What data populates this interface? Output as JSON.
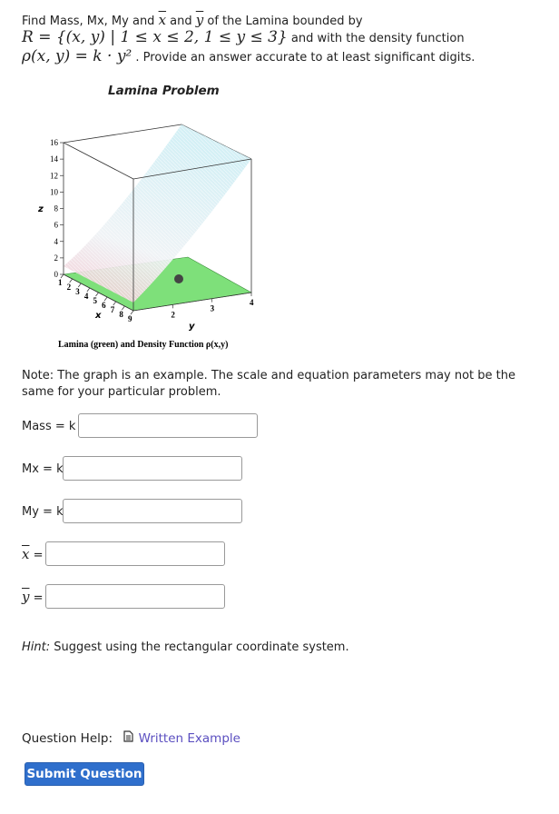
{
  "question": {
    "line1_prefix": "Find Mass, Mx, My and ",
    "xbar": "x",
    "and": " and ",
    "ybar": "y",
    "line1_suffix": " of the Lamina bounded by",
    "region_math": "R = {(x, y) | 1 ≤ x ≤ 2, 1 ≤ y ≤ 3}",
    "line2_suffix": " and with the density function",
    "density_math": "ρ(x, y) = k · y²",
    "line3_suffix": " . Provide an answer accurate to at least significant digits."
  },
  "figure": {
    "title": "Lamina Problem",
    "caption": "Lamina (green) and Density Function ρ(x,y)",
    "z_label": "z",
    "x_label": "x",
    "y_label": "y",
    "z_ticks": [
      "0",
      "2",
      "4",
      "6",
      "8",
      "10",
      "12",
      "14",
      "16"
    ],
    "x_ticks": [
      "1",
      "2",
      "3",
      "4",
      "5",
      "6",
      "7",
      "8",
      "9"
    ],
    "y_ticks": [
      "2",
      "3",
      "4"
    ],
    "colors": {
      "lamina": "#7ee07a",
      "surface_top": "#d6f0f5",
      "surface_bottom": "#f3c6cf"
    }
  },
  "note": "Note: The graph is an example. The scale and equation parameters may not be the same for your particular problem.",
  "fields": [
    {
      "label": "Mass = k",
      "value": ""
    },
    {
      "label": "Mx = k",
      "value": ""
    },
    {
      "label": "My = k",
      "value": ""
    },
    {
      "label": "x",
      "value": ""
    },
    {
      "label": "y",
      "value": ""
    }
  ],
  "eq": " =",
  "hint_label": "Hint:",
  "hint_text": " Suggest using the rectangular coordinate system.",
  "help_label": "Question Help:",
  "help_link": "Written Example",
  "submit": "Submit Question"
}
